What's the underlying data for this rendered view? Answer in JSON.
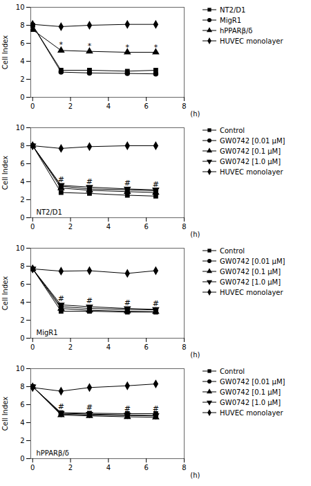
{
  "chart_data": [
    {
      "type": "line",
      "color": "black",
      "grid": false,
      "legend": "right",
      "x": [
        0,
        1.5,
        3,
        5,
        6.5
      ],
      "xlim": [
        -0.1,
        8
      ],
      "xticks": [
        0,
        2,
        4,
        6,
        8
      ],
      "ylim": [
        0,
        10
      ],
      "yticks": [
        0,
        2,
        4,
        6,
        8,
        10
      ],
      "xlabel": "(h)",
      "ylabel": "Cell Index",
      "series": [
        {
          "name": "NT2/D1",
          "marker": "square",
          "values": [
            8.0,
            3.0,
            3.0,
            2.9,
            3.0
          ],
          "yerr": [
            0.05,
            0.1,
            0.08,
            0.08,
            0.08
          ]
        },
        {
          "name": "MigR1",
          "marker": "circle",
          "values": [
            8.0,
            2.8,
            2.7,
            2.65,
            2.6
          ],
          "yerr": [
            0.05,
            0.1,
            0.08,
            0.08,
            0.08
          ]
        },
        {
          "name": "hPPARβ/δ",
          "marker": "triangle",
          "values": [
            7.5,
            5.2,
            5.1,
            5.0,
            5.0
          ],
          "yerr": [
            0.05,
            0.18,
            0.15,
            0.12,
            0.12
          ]
        },
        {
          "name": "HUVEC monolayer",
          "marker": "diamond",
          "values": [
            8.1,
            7.85,
            8.0,
            8.1,
            8.1
          ],
          "yerr": [
            0.05,
            0.08,
            0.08,
            0.08,
            0.08
          ]
        }
      ],
      "annotations": [
        {
          "x": 1.5,
          "y": 5.55,
          "text": "*"
        },
        {
          "x": 3,
          "y": 5.4,
          "text": "*"
        },
        {
          "x": 5,
          "y": 5.3,
          "text": "*"
        },
        {
          "x": 6.5,
          "y": 5.3,
          "text": "*"
        }
      ]
    },
    {
      "type": "line",
      "color": "black",
      "grid": false,
      "legend": "right",
      "x": [
        0,
        1.5,
        3,
        5,
        6.5
      ],
      "xlim": [
        -0.1,
        8
      ],
      "xticks": [
        0,
        2,
        4,
        6,
        8
      ],
      "ylim": [
        0,
        10
      ],
      "yticks": [
        0,
        2,
        4,
        6,
        8,
        10
      ],
      "xlabel": "(h)",
      "ylabel": "Cell Index",
      "series": [
        {
          "name": "Control",
          "marker": "square",
          "values": [
            8.0,
            2.8,
            2.7,
            2.5,
            2.4
          ],
          "yerr": [
            0.05,
            0.1,
            0.08,
            0.08,
            0.08
          ]
        },
        {
          "name": "GW0742 [0.01 μM]",
          "marker": "circle",
          "values": [
            8.0,
            3.5,
            3.2,
            3.1,
            3.0
          ],
          "yerr": [
            0.05,
            0.15,
            0.12,
            0.1,
            0.1
          ]
        },
        {
          "name": "GW0742 [0.1 μM]",
          "marker": "triangle",
          "values": [
            8.0,
            3.3,
            3.05,
            2.9,
            2.8
          ],
          "yerr": [
            0.05,
            0.15,
            0.12,
            0.1,
            0.1
          ]
        },
        {
          "name": "GW0742 [1.0 μM]",
          "marker": "triangle-down",
          "values": [
            8.0,
            3.6,
            3.4,
            3.2,
            3.1
          ],
          "yerr": [
            0.05,
            0.15,
            0.12,
            0.1,
            0.1
          ]
        },
        {
          "name": "HUVEC monolayer",
          "marker": "diamond",
          "values": [
            8.0,
            7.7,
            7.9,
            8.0,
            8.0
          ],
          "yerr": [
            0.05,
            0.08,
            0.08,
            0.08,
            0.08
          ]
        }
      ],
      "annotations": [
        {
          "text": "NT2/D1"
        },
        {
          "x": 1.5,
          "y": 4.0,
          "text": "#"
        },
        {
          "x": 3,
          "y": 3.75,
          "text": "#"
        },
        {
          "x": 5,
          "y": 3.55,
          "text": "#"
        },
        {
          "x": 6.5,
          "y": 3.45,
          "text": "#"
        }
      ]
    },
    {
      "type": "line",
      "color": "black",
      "grid": false,
      "legend": "right",
      "x": [
        0,
        1.5,
        3,
        5,
        6.5
      ],
      "xlim": [
        -0.1,
        8
      ],
      "xticks": [
        0,
        2,
        4,
        6,
        8
      ],
      "ylim": [
        0,
        10
      ],
      "yticks": [
        0,
        2,
        4,
        6,
        8,
        10
      ],
      "xlabel": "(h)",
      "ylabel": "Cell Index",
      "series": [
        {
          "name": "Control",
          "marker": "square",
          "values": [
            7.7,
            3.0,
            3.0,
            2.9,
            2.9
          ],
          "yerr": [
            0.05,
            0.1,
            0.08,
            0.08,
            0.08
          ]
        },
        {
          "name": "GW0742 [0.01 μM]",
          "marker": "circle",
          "values": [
            7.7,
            3.5,
            3.3,
            3.2,
            3.15
          ],
          "yerr": [
            0.05,
            0.15,
            0.12,
            0.1,
            0.1
          ]
        },
        {
          "name": "GW0742 [0.1 μM]",
          "marker": "triangle",
          "values": [
            7.7,
            3.3,
            3.1,
            3.0,
            2.95
          ],
          "yerr": [
            0.05,
            0.15,
            0.12,
            0.1,
            0.1
          ]
        },
        {
          "name": "GW0742 [1.0 μM]",
          "marker": "triangle-down",
          "values": [
            7.7,
            3.7,
            3.5,
            3.3,
            3.2
          ],
          "yerr": [
            0.05,
            0.15,
            0.12,
            0.1,
            0.1
          ]
        },
        {
          "name": "HUVEC monolayer",
          "marker": "diamond",
          "values": [
            7.7,
            7.45,
            7.5,
            7.2,
            7.5
          ],
          "yerr": [
            0.1,
            0.12,
            0.15,
            0.15,
            0.12
          ]
        }
      ],
      "annotations": [
        {
          "text": "MigR1"
        },
        {
          "x": 1.5,
          "y": 4.1,
          "text": "#"
        },
        {
          "x": 3,
          "y": 3.85,
          "text": "#"
        },
        {
          "x": 5,
          "y": 3.65,
          "text": "#"
        },
        {
          "x": 6.5,
          "y": 3.55,
          "text": "#"
        }
      ]
    },
    {
      "type": "line",
      "color": "black",
      "grid": false,
      "legend": "right",
      "x": [
        0,
        1.5,
        3,
        5,
        6.5
      ],
      "xlim": [
        -0.1,
        8
      ],
      "xticks": [
        0,
        2,
        4,
        6,
        8
      ],
      "ylim": [
        0,
        10
      ],
      "yticks": [
        0,
        2,
        4,
        6,
        8,
        10
      ],
      "xlabel": "(h)",
      "ylabel": "Cell Index",
      "series": [
        {
          "name": "Control",
          "marker": "square",
          "values": [
            8.0,
            5.1,
            5.05,
            5.0,
            5.0
          ],
          "yerr": [
            0.05,
            0.12,
            0.1,
            0.1,
            0.1
          ]
        },
        {
          "name": "GW0742 [0.01 μM]",
          "marker": "circle",
          "values": [
            8.0,
            4.95,
            4.85,
            4.8,
            4.75
          ],
          "yerr": [
            0.05,
            0.12,
            0.1,
            0.1,
            0.1
          ]
        },
        {
          "name": "GW0742 [0.1 μM]",
          "marker": "triangle",
          "values": [
            8.0,
            4.85,
            4.75,
            4.65,
            4.6
          ],
          "yerr": [
            0.05,
            0.12,
            0.1,
            0.1,
            0.1
          ]
        },
        {
          "name": "GW0742 [1.0 μM]",
          "marker": "triangle-down",
          "values": [
            8.0,
            5.05,
            4.95,
            4.85,
            4.8
          ],
          "yerr": [
            0.05,
            0.12,
            0.1,
            0.1,
            0.1
          ]
        },
        {
          "name": "HUVEC monolayer",
          "marker": "diamond",
          "values": [
            7.9,
            7.5,
            7.9,
            8.1,
            8.3
          ],
          "yerr": [
            0.1,
            0.12,
            0.12,
            0.15,
            0.15
          ]
        }
      ],
      "annotations": [
        {
          "text": "hPPARβ/δ"
        },
        {
          "x": 1.5,
          "y": 5.5,
          "text": "#"
        },
        {
          "x": 3,
          "y": 5.4,
          "text": "#"
        },
        {
          "x": 5,
          "y": 5.3,
          "text": "#"
        },
        {
          "x": 6.5,
          "y": 5.25,
          "text": "#"
        }
      ]
    }
  ]
}
